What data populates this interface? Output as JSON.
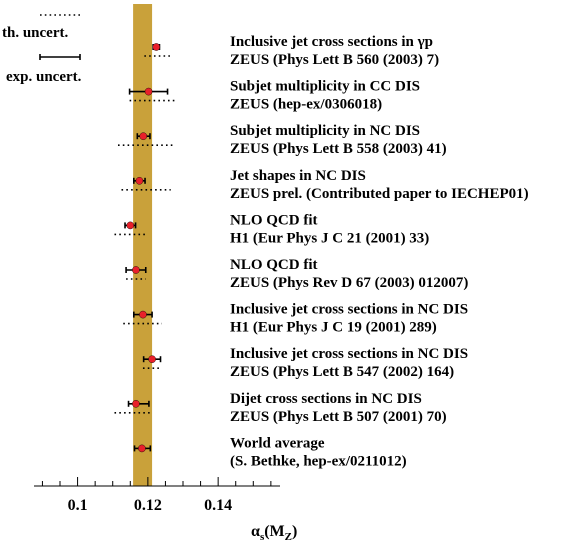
{
  "chart_data": {
    "type": "scatter",
    "subtype": "horizontal error-bar comparison",
    "xlabel_main": "α",
    "xlabel_sub": "s",
    "xlabel_rest": "(M",
    "xlabel_sub2": "Z",
    "xlabel_end": ")",
    "xlim": [
      0.0876,
      0.1576
    ],
    "ticks": [
      0.1,
      0.12,
      0.14
    ],
    "tick_labels": [
      "0.1",
      "0.12",
      "0.14"
    ],
    "band": {
      "low": 0.1158,
      "high": 0.1212,
      "color": "#c9a13a"
    },
    "legend": {
      "th_label": "th. uncert.",
      "exp_label": "exp. uncert."
    },
    "series": [
      {
        "line1": "Inclusive jet cross sections in γp",
        "line2": "ZEUS (Phys Lett B 560 (2003) 7)",
        "value": 0.1224,
        "exp": [
          0.1215,
          0.1233
        ],
        "th": [
          0.119,
          0.127
        ]
      },
      {
        "line1": "Subjet multiplicity in CC DIS",
        "line2": "ZEUS (hep-ex/0306018)",
        "value": 0.1202,
        "exp": [
          0.1148,
          0.1256
        ],
        "th": [
          0.1148,
          0.1283
        ]
      },
      {
        "line1": "Subjet multiplicity in NC DIS",
        "line2": "ZEUS (Phys Lett B 558 (2003) 41)",
        "value": 0.1187,
        "exp": [
          0.117,
          0.1206
        ],
        "th": [
          0.1115,
          0.127
        ]
      },
      {
        "line1": "Jet shapes in NC DIS",
        "line2": "ZEUS prel. (Contributed paper to IECHEP01)",
        "value": 0.1176,
        "exp": [
          0.116,
          0.1192
        ],
        "th": [
          0.1125,
          0.1265
        ]
      },
      {
        "line1": "NLO QCD fit",
        "line2": "H1 (Eur Phys J C 21 (2001) 33)",
        "value": 0.115,
        "exp": [
          0.1135,
          0.1165
        ],
        "th": [
          0.1105,
          0.12
        ]
      },
      {
        "line1": "NLO QCD fit",
        "line2": "ZEUS (Phys Rev D 67 (2003) 012007)",
        "value": 0.1166,
        "exp": [
          0.1138,
          0.1194
        ],
        "th": [
          0.1138,
          0.1194
        ]
      },
      {
        "line1": "Inclusive jet cross sections in NC DIS",
        "line2": "H1 (Eur Phys J C 19 (2001) 289)",
        "value": 0.1186,
        "exp": [
          0.116,
          0.1212
        ],
        "th": [
          0.113,
          0.124
        ]
      },
      {
        "line1": "Inclusive jet cross sections in NC DIS",
        "line2": "ZEUS (Phys Lett B 547 (2002) 164)",
        "value": 0.1212,
        "exp": [
          0.1188,
          0.1236
        ],
        "th": [
          0.1186,
          0.1238
        ]
      },
      {
        "line1": "Dijet cross sections in NC DIS",
        "line2": "ZEUS (Phys Lett B 507 (2001) 70)",
        "value": 0.1166,
        "exp": [
          0.1145,
          0.1203
        ],
        "th": [
          0.1105,
          0.121
        ]
      },
      {
        "line1": "World average",
        "line2": "(S. Bethke, hep-ex/0211012)",
        "value": 0.1183,
        "exp": [
          0.1162,
          0.1207
        ],
        "th": null
      }
    ]
  }
}
